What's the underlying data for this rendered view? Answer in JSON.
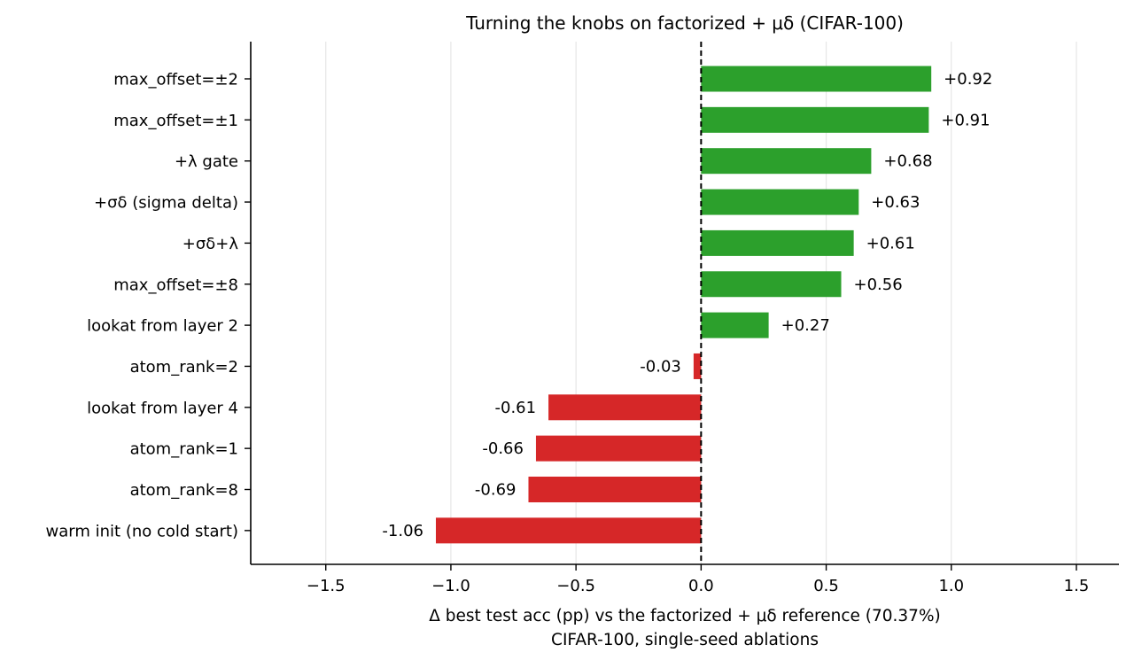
{
  "chart_data": {
    "type": "bar",
    "orientation": "horizontal",
    "title": "Turning the knobs on factorized + μδ (CIFAR-100)",
    "xlabel": "Δ best test acc (pp) vs the factorized + μδ reference (70.37%)",
    "xlabel_line2": "CIFAR-100, single-seed ablations",
    "ylabel": "",
    "xlim": [
      -1.8,
      1.67
    ],
    "xticks": [
      -1.5,
      -1.0,
      -0.5,
      0.0,
      0.5,
      1.0,
      1.5
    ],
    "xtick_labels": [
      "−1.5",
      "−1.0",
      "−0.5",
      "0.0",
      "0.5",
      "1.0",
      "1.5"
    ],
    "grid": "vertical",
    "reference_line": 0.0,
    "categories": [
      "max_offset=±2",
      "max_offset=±1",
      "+λ gate",
      "+σδ (sigma delta)",
      "+σδ+λ",
      "max_offset=±8",
      "lookat from layer 2",
      "atom_rank=2",
      "lookat from layer 4",
      "atom_rank=1",
      "atom_rank=8",
      "warm init (no cold start)"
    ],
    "values": [
      0.92,
      0.91,
      0.68,
      0.63,
      0.61,
      0.56,
      0.27,
      -0.03,
      -0.61,
      -0.66,
      -0.69,
      -1.06
    ],
    "value_labels": [
      "+0.92",
      "+0.91",
      "+0.68",
      "+0.63",
      "+0.61",
      "+0.56",
      "+0.27",
      "-0.03",
      "-0.61",
      "-0.66",
      "-0.69",
      "-1.06"
    ],
    "colors": {
      "positive": "#2ca02c",
      "negative": "#d62728",
      "grid": "#e6e6e6",
      "axis": "#000000"
    }
  }
}
